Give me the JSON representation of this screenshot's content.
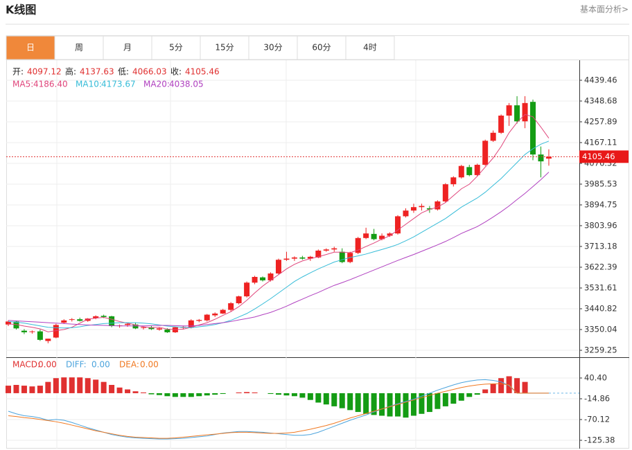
{
  "header": {
    "title": "K线图",
    "link": "基本面分析>"
  },
  "tabs": [
    "日",
    "周",
    "月",
    "5分",
    "15分",
    "30分",
    "60分",
    "4时"
  ],
  "active_tab": 0,
  "chart_data": [
    {
      "type": "candlestick",
      "readout": [
        {
          "label": "开:",
          "value": "4097.12"
        },
        {
          "label": "高:",
          "value": "4137.63"
        },
        {
          "label": "低:",
          "value": "4066.03"
        },
        {
          "label": "收:",
          "value": "4105.46"
        }
      ],
      "up_color": "#ee2222",
      "down_color": "#149c14",
      "open": [
        3372,
        3385,
        3345,
        3340,
        3342,
        3300,
        3315,
        3380,
        3392,
        3395,
        3388,
        3400,
        3410,
        3408,
        3365,
        3370,
        3372,
        3358,
        3360,
        3350,
        3350,
        3338,
        3358,
        3360,
        3388,
        3390,
        3412,
        3420,
        3436,
        3465,
        3495,
        3555,
        3578,
        3565,
        3595,
        3655,
        3660,
        3665,
        3660,
        3665,
        3695,
        3700,
        3690,
        3645,
        3685,
        3750,
        3768,
        3745,
        3760,
        3770,
        3845,
        3870,
        3885,
        3880,
        3875,
        3910,
        3985,
        4015,
        4060,
        4025,
        4070,
        4175,
        4210,
        4285,
        4330,
        4260,
        4345,
        4115,
        4097.12
      ],
      "high": [
        3390,
        3388,
        3352,
        3346,
        3350,
        3310,
        3375,
        3395,
        3400,
        3402,
        3400,
        3412,
        3415,
        3410,
        3372,
        3378,
        3380,
        3364,
        3366,
        3360,
        3356,
        3362,
        3366,
        3395,
        3396,
        3418,
        3425,
        3440,
        3470,
        3498,
        3560,
        3585,
        3582,
        3600,
        3660,
        3690,
        3670,
        3672,
        3672,
        3700,
        3705,
        3712,
        3705,
        3690,
        3755,
        3795,
        3790,
        3770,
        3775,
        3850,
        3880,
        3900,
        3900,
        3890,
        3915,
        3990,
        4020,
        4070,
        4070,
        4075,
        4180,
        4220,
        4290,
        4340,
        4370,
        4370,
        4355,
        4150,
        4137.63
      ],
      "low": [
        3365,
        3350,
        3330,
        3332,
        3300,
        3290,
        3312,
        3375,
        3385,
        3385,
        3384,
        3395,
        3400,
        3360,
        3358,
        3362,
        3352,
        3350,
        3348,
        3345,
        3335,
        3335,
        3350,
        3355,
        3382,
        3385,
        3405,
        3418,
        3430,
        3460,
        3490,
        3548,
        3560,
        3560,
        3590,
        3650,
        3650,
        3655,
        3650,
        3662,
        3690,
        3690,
        3640,
        3640,
        3680,
        3745,
        3740,
        3740,
        3755,
        3765,
        3840,
        3860,
        3870,
        3860,
        3870,
        3905,
        3975,
        4010,
        4020,
        4020,
        4065,
        4170,
        4205,
        4240,
        4250,
        4230,
        4090,
        4015,
        4066.03
      ],
      "close": [
        3385,
        3355,
        3338,
        3342,
        3305,
        3310,
        3370,
        3390,
        3395,
        3388,
        3398,
        3408,
        3405,
        3365,
        3368,
        3375,
        3355,
        3360,
        3352,
        3355,
        3338,
        3360,
        3362,
        3390,
        3392,
        3415,
        3420,
        3436,
        3465,
        3495,
        3555,
        3580,
        3565,
        3595,
        3655,
        3660,
        3665,
        3660,
        3668,
        3695,
        3700,
        3705,
        3645,
        3685,
        3750,
        3770,
        3745,
        3760,
        3770,
        3845,
        3870,
        3885,
        3890,
        3875,
        3910,
        3985,
        4015,
        4065,
        4025,
        4070,
        4175,
        4210,
        4285,
        4330,
        4260,
        4340,
        4115,
        4085,
        4105.46
      ],
      "series": [
        {
          "name": "MA5:",
          "readout": "4186.40",
          "color": "#e0457b",
          "values": [
            3375,
            3372,
            3365,
            3360,
            3353,
            3340,
            3345,
            3350,
            3360,
            3378,
            3395,
            3400,
            3403,
            3395,
            3385,
            3378,
            3370,
            3362,
            3358,
            3360,
            3352,
            3350,
            3352,
            3360,
            3370,
            3380,
            3395,
            3412,
            3428,
            3450,
            3478,
            3510,
            3540,
            3565,
            3590,
            3615,
            3635,
            3650,
            3660,
            3668,
            3678,
            3688,
            3688,
            3686,
            3697,
            3713,
            3728,
            3745,
            3760,
            3785,
            3810,
            3835,
            3860,
            3875,
            3885,
            3905,
            3935,
            3965,
            3985,
            4020,
            4060,
            4100,
            4150,
            4210,
            4255,
            4290,
            4280,
            4235,
            4186.4
          ]
        },
        {
          "name": "MA10:",
          "readout": "4173.67",
          "color": "#36bcd8",
          "values": [
            3385,
            3382,
            3378,
            3372,
            3366,
            3360,
            3358,
            3357,
            3358,
            3362,
            3368,
            3372,
            3376,
            3378,
            3380,
            3380,
            3380,
            3378,
            3375,
            3370,
            3365,
            3362,
            3360,
            3358,
            3362,
            3366,
            3372,
            3380,
            3390,
            3405,
            3420,
            3440,
            3462,
            3485,
            3510,
            3535,
            3560,
            3580,
            3598,
            3615,
            3630,
            3645,
            3655,
            3665,
            3672,
            3680,
            3690,
            3700,
            3710,
            3722,
            3738,
            3755,
            3775,
            3795,
            3815,
            3835,
            3860,
            3885,
            3905,
            3925,
            3950,
            3980,
            4010,
            4045,
            4080,
            4115,
            4140,
            4160,
            4173.67
          ]
        },
        {
          "name": "MA20:",
          "readout": "4038.05",
          "color": "#b040c0",
          "values": [
            3390,
            3388,
            3386,
            3384,
            3382,
            3380,
            3378,
            3376,
            3374,
            3372,
            3370,
            3369,
            3368,
            3367,
            3366,
            3366,
            3366,
            3366,
            3367,
            3368,
            3368,
            3367,
            3366,
            3366,
            3368,
            3372,
            3376,
            3380,
            3385,
            3392,
            3398,
            3405,
            3415,
            3425,
            3438,
            3452,
            3468,
            3483,
            3498,
            3512,
            3528,
            3543,
            3555,
            3568,
            3582,
            3596,
            3610,
            3624,
            3638,
            3652,
            3665,
            3678,
            3692,
            3706,
            3720,
            3735,
            3752,
            3770,
            3785,
            3800,
            3820,
            3842,
            3865,
            3890,
            3918,
            3945,
            3975,
            4005,
            4038.05
          ]
        }
      ],
      "last_price": 4105.46,
      "ylim": [
        3229,
        4524
      ],
      "yticks": [
        4439.46,
        4348.68,
        4257.89,
        4167.11,
        4076.32,
        3985.53,
        3894.75,
        3803.96,
        3713.18,
        3622.39,
        3531.61,
        3440.82,
        3350.04,
        3259.25
      ],
      "grid": true
    },
    {
      "type": "macd",
      "name": "MACD:",
      "readout": "0.00",
      "color": "#e03030",
      "negative_color": "#149c14",
      "values": [
        20,
        22,
        20,
        18,
        20,
        30,
        40,
        42,
        42,
        42,
        40,
        36,
        30,
        22,
        15,
        10,
        5,
        2,
        -3,
        -5,
        -8,
        -10,
        -10,
        -10,
        -8,
        -6,
        -4,
        -2,
        0,
        2,
        3,
        2,
        0,
        -2,
        -4,
        -6,
        -8,
        -12,
        -18,
        -25,
        -30,
        -35,
        -40,
        -45,
        -50,
        -55,
        -58,
        -60,
        -62,
        -62,
        -65,
        -60,
        -55,
        -50,
        -42,
        -35,
        -28,
        -20,
        -10,
        -4,
        10,
        25,
        40,
        45,
        40,
        30,
        0,
        0,
        0
      ],
      "series": [
        {
          "name": "DIFF:",
          "readout": "0.00",
          "color": "#4ba3dc",
          "values": [
            -48,
            -55,
            -60,
            -62,
            -66,
            -72,
            -70,
            -72,
            -78,
            -85,
            -92,
            -98,
            -104,
            -110,
            -114,
            -117,
            -119,
            -120,
            -121,
            -122,
            -122,
            -121,
            -120,
            -118,
            -116,
            -114,
            -110,
            -106,
            -104,
            -102,
            -102,
            -103,
            -104,
            -106,
            -108,
            -110,
            -112,
            -112,
            -110,
            -104,
            -96,
            -88,
            -80,
            -72,
            -65,
            -58,
            -50,
            -42,
            -35,
            -28,
            -22,
            -16,
            -8,
            0,
            8,
            15,
            22,
            28,
            32,
            35,
            36,
            34,
            30,
            20,
            0,
            0,
            0,
            0,
            0
          ]
        },
        {
          "name": "DEA:",
          "readout": "0.00",
          "color": "#f07820",
          "values": [
            -60,
            -62,
            -65,
            -67,
            -70,
            -73,
            -76,
            -80,
            -85,
            -90,
            -95,
            -100,
            -104,
            -108,
            -112,
            -115,
            -117,
            -118,
            -119,
            -120,
            -120,
            -119,
            -117,
            -115,
            -113,
            -111,
            -109,
            -107,
            -105,
            -104,
            -104,
            -105,
            -106,
            -107,
            -107,
            -106,
            -104,
            -100,
            -96,
            -91,
            -86,
            -80,
            -73,
            -66,
            -60,
            -54,
            -48,
            -42,
            -36,
            -30,
            -24,
            -18,
            -12,
            -6,
            0,
            5,
            10,
            15,
            19,
            22,
            24,
            25,
            25,
            22,
            0,
            0,
            0,
            0,
            0
          ]
        }
      ],
      "ylim": [
        -147.5,
        93.8
      ],
      "yticks": [
        {
          "value": 40.4,
          "label": "40.40"
        },
        -14.86,
        -70.12,
        -125.38
      ],
      "grid": true
    }
  ]
}
